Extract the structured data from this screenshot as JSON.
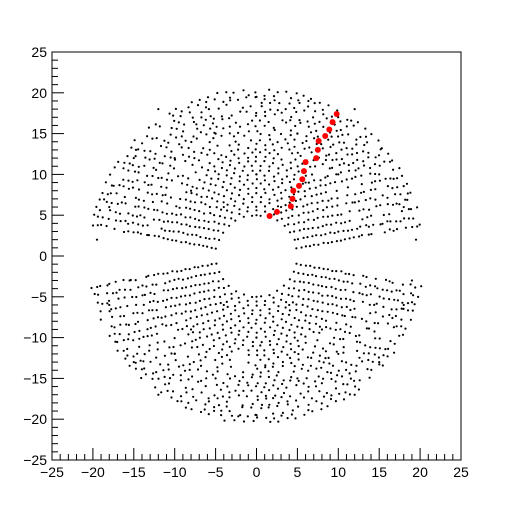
{
  "chart_data": {
    "type": "scatter",
    "title": "",
    "xlabel": "",
    "ylabel": "",
    "xlim": [
      -25,
      25
    ],
    "ylim": [
      -25,
      25
    ],
    "x_ticks": [
      -25,
      -20,
      -15,
      -10,
      -5,
      0,
      5,
      10,
      15,
      20,
      25
    ],
    "y_ticks": [
      -25,
      -20,
      -15,
      -10,
      -5,
      0,
      5,
      10,
      15,
      20,
      25
    ],
    "x_tick_labels": [
      "−25",
      "−20",
      "−15",
      "−10",
      "−5",
      "0",
      "5",
      "10",
      "15",
      "20",
      "25"
    ],
    "y_tick_labels": [
      "−25",
      "−20",
      "−15",
      "−10",
      "−5",
      "0",
      "5",
      "10",
      "15",
      "20",
      "25"
    ],
    "grid": false,
    "legend": "none",
    "series": [
      {
        "color": "#000000",
        "marker": "dot",
        "pattern": "concentric half-ring bands (upper and lower halves) of detector hits",
        "radius_range": [
          5,
          20.5
        ],
        "points": [
          [
            0,
            5
          ],
          [
            -4,
            6
          ],
          [
            3,
            6
          ],
          [
            -8,
            8
          ],
          [
            6,
            9
          ],
          [
            -10,
            12
          ],
          [
            10,
            10
          ],
          [
            0,
            10
          ],
          [
            -15,
            12
          ],
          [
            15,
            10
          ],
          [
            -5,
            15
          ],
          [
            5,
            15
          ],
          [
            -12,
            18
          ],
          [
            12,
            18
          ],
          [
            -18,
            6
          ],
          [
            18,
            6
          ],
          [
            0,
            19.5
          ],
          [
            -19.5,
            2
          ],
          [
            19.5,
            2
          ],
          [
            0,
            -5
          ],
          [
            -4,
            -6
          ],
          [
            4,
            -6
          ],
          [
            -8,
            -9
          ],
          [
            8,
            -9
          ],
          [
            0,
            -10
          ],
          [
            -10,
            -12
          ],
          [
            10,
            -12
          ],
          [
            -15,
            -13
          ],
          [
            15,
            -13
          ],
          [
            -5,
            -15
          ],
          [
            5,
            -15
          ],
          [
            -12,
            -17
          ],
          [
            12,
            -17
          ],
          [
            -18,
            -6
          ],
          [
            18,
            -6
          ],
          [
            0,
            -19.5
          ],
          [
            -2,
            -19.5
          ],
          [
            19,
            -3
          ]
        ]
      },
      {
        "color": "#ff0000",
        "marker": "circle",
        "points": [
          [
            1.6,
            4.9
          ],
          [
            2.5,
            5.4
          ],
          [
            4.2,
            6.1
          ],
          [
            4.4,
            7.0
          ],
          [
            4.5,
            8.0
          ],
          [
            5.2,
            8.6
          ],
          [
            5.6,
            9.4
          ],
          [
            5.8,
            10.4
          ],
          [
            6.0,
            11.5
          ],
          [
            7.3,
            12.0
          ],
          [
            7.5,
            13.0
          ],
          [
            7.6,
            14.1
          ],
          [
            8.4,
            14.7
          ],
          [
            8.9,
            15.5
          ],
          [
            9.3,
            16.4
          ],
          [
            9.8,
            17.4
          ]
        ]
      }
    ]
  }
}
